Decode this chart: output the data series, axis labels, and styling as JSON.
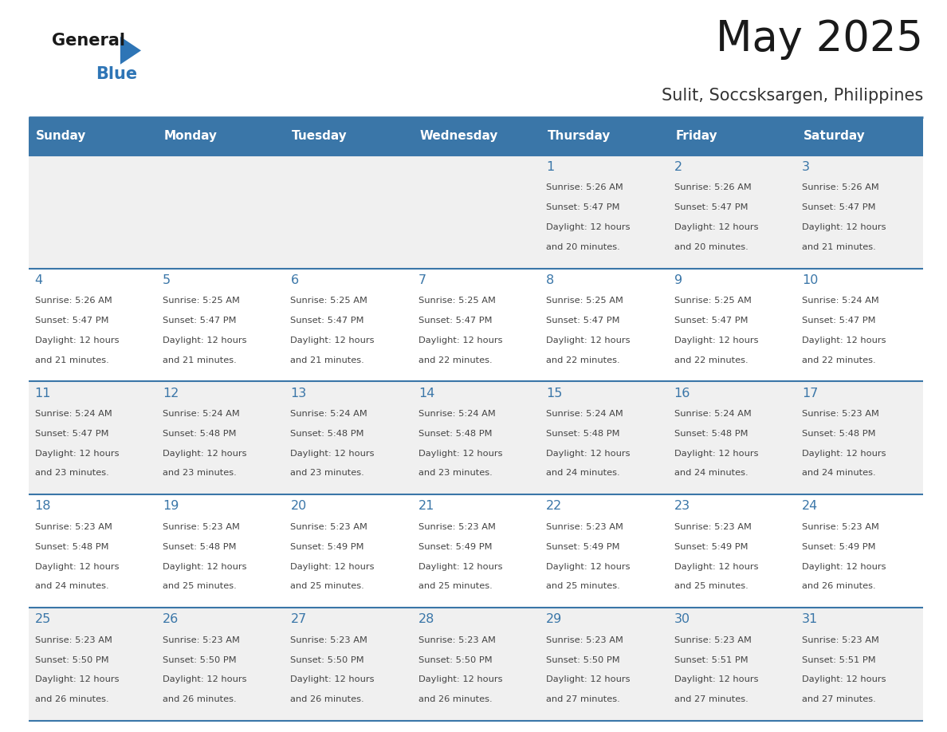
{
  "title": "May 2025",
  "subtitle": "Sulit, Soccsksargen, Philippines",
  "days_of_week": [
    "Sunday",
    "Monday",
    "Tuesday",
    "Wednesday",
    "Thursday",
    "Friday",
    "Saturday"
  ],
  "header_bg": "#3A76A8",
  "header_text": "#FFFFFF",
  "row_bg_odd": "#FFFFFF",
  "row_bg_even": "#F0F0F0",
  "day_number_color": "#3A76A8",
  "text_color": "#444444",
  "line_color": "#3A76A8",
  "calendar_data": [
    [
      null,
      null,
      null,
      null,
      {
        "day": 1,
        "sunrise": "5:26 AM",
        "sunset": "5:47 PM",
        "daylight": "12 hours and 20 minutes"
      },
      {
        "day": 2,
        "sunrise": "5:26 AM",
        "sunset": "5:47 PM",
        "daylight": "12 hours and 20 minutes"
      },
      {
        "day": 3,
        "sunrise": "5:26 AM",
        "sunset": "5:47 PM",
        "daylight": "12 hours and 21 minutes"
      }
    ],
    [
      {
        "day": 4,
        "sunrise": "5:26 AM",
        "sunset": "5:47 PM",
        "daylight": "12 hours and 21 minutes"
      },
      {
        "day": 5,
        "sunrise": "5:25 AM",
        "sunset": "5:47 PM",
        "daylight": "12 hours and 21 minutes"
      },
      {
        "day": 6,
        "sunrise": "5:25 AM",
        "sunset": "5:47 PM",
        "daylight": "12 hours and 21 minutes"
      },
      {
        "day": 7,
        "sunrise": "5:25 AM",
        "sunset": "5:47 PM",
        "daylight": "12 hours and 22 minutes"
      },
      {
        "day": 8,
        "sunrise": "5:25 AM",
        "sunset": "5:47 PM",
        "daylight": "12 hours and 22 minutes"
      },
      {
        "day": 9,
        "sunrise": "5:25 AM",
        "sunset": "5:47 PM",
        "daylight": "12 hours and 22 minutes"
      },
      {
        "day": 10,
        "sunrise": "5:24 AM",
        "sunset": "5:47 PM",
        "daylight": "12 hours and 22 minutes"
      }
    ],
    [
      {
        "day": 11,
        "sunrise": "5:24 AM",
        "sunset": "5:47 PM",
        "daylight": "12 hours and 23 minutes"
      },
      {
        "day": 12,
        "sunrise": "5:24 AM",
        "sunset": "5:48 PM",
        "daylight": "12 hours and 23 minutes"
      },
      {
        "day": 13,
        "sunrise": "5:24 AM",
        "sunset": "5:48 PM",
        "daylight": "12 hours and 23 minutes"
      },
      {
        "day": 14,
        "sunrise": "5:24 AM",
        "sunset": "5:48 PM",
        "daylight": "12 hours and 23 minutes"
      },
      {
        "day": 15,
        "sunrise": "5:24 AM",
        "sunset": "5:48 PM",
        "daylight": "12 hours and 24 minutes"
      },
      {
        "day": 16,
        "sunrise": "5:24 AM",
        "sunset": "5:48 PM",
        "daylight": "12 hours and 24 minutes"
      },
      {
        "day": 17,
        "sunrise": "5:23 AM",
        "sunset": "5:48 PM",
        "daylight": "12 hours and 24 minutes"
      }
    ],
    [
      {
        "day": 18,
        "sunrise": "5:23 AM",
        "sunset": "5:48 PM",
        "daylight": "12 hours and 24 minutes"
      },
      {
        "day": 19,
        "sunrise": "5:23 AM",
        "sunset": "5:48 PM",
        "daylight": "12 hours and 25 minutes"
      },
      {
        "day": 20,
        "sunrise": "5:23 AM",
        "sunset": "5:49 PM",
        "daylight": "12 hours and 25 minutes"
      },
      {
        "day": 21,
        "sunrise": "5:23 AM",
        "sunset": "5:49 PM",
        "daylight": "12 hours and 25 minutes"
      },
      {
        "day": 22,
        "sunrise": "5:23 AM",
        "sunset": "5:49 PM",
        "daylight": "12 hours and 25 minutes"
      },
      {
        "day": 23,
        "sunrise": "5:23 AM",
        "sunset": "5:49 PM",
        "daylight": "12 hours and 25 minutes"
      },
      {
        "day": 24,
        "sunrise": "5:23 AM",
        "sunset": "5:49 PM",
        "daylight": "12 hours and 26 minutes"
      }
    ],
    [
      {
        "day": 25,
        "sunrise": "5:23 AM",
        "sunset": "5:50 PM",
        "daylight": "12 hours and 26 minutes"
      },
      {
        "day": 26,
        "sunrise": "5:23 AM",
        "sunset": "5:50 PM",
        "daylight": "12 hours and 26 minutes"
      },
      {
        "day": 27,
        "sunrise": "5:23 AM",
        "sunset": "5:50 PM",
        "daylight": "12 hours and 26 minutes"
      },
      {
        "day": 28,
        "sunrise": "5:23 AM",
        "sunset": "5:50 PM",
        "daylight": "12 hours and 26 minutes"
      },
      {
        "day": 29,
        "sunrise": "5:23 AM",
        "sunset": "5:50 PM",
        "daylight": "12 hours and 27 minutes"
      },
      {
        "day": 30,
        "sunrise": "5:23 AM",
        "sunset": "5:51 PM",
        "daylight": "12 hours and 27 minutes"
      },
      {
        "day": 31,
        "sunrise": "5:23 AM",
        "sunset": "5:51 PM",
        "daylight": "12 hours and 27 minutes"
      }
    ]
  ]
}
